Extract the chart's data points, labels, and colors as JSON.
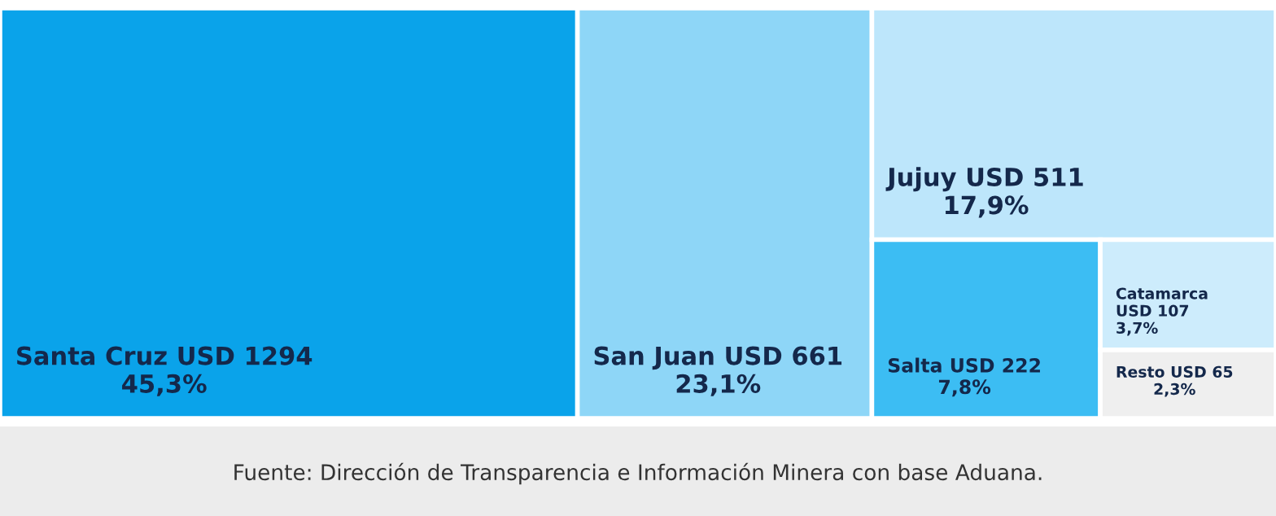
{
  "chart_data": {
    "type": "other",
    "categories": [
      "Santa Cruz USD 1294",
      "San Juan USD 661",
      "Jujuy USD 511",
      "Salta USD 222",
      "Catamarca USD 107",
      "Resto USD 65"
    ],
    "values": [
      45.3,
      23.1,
      17.9,
      7.8,
      3.7,
      2.3
    ],
    "value_labels": [
      "45,3%",
      "23,1%",
      "17,9%",
      "7,8%",
      "3,7%",
      "2,3%"
    ],
    "colors": [
      "#0aa3ea",
      "#8ed6f7",
      "#bde6fb",
      "#3cbdf3",
      "#cdecfc",
      "#efefef"
    ],
    "annotations": [
      "Fuente: Dirección de Transparencia e Información Minera con base Aduana."
    ]
  }
}
